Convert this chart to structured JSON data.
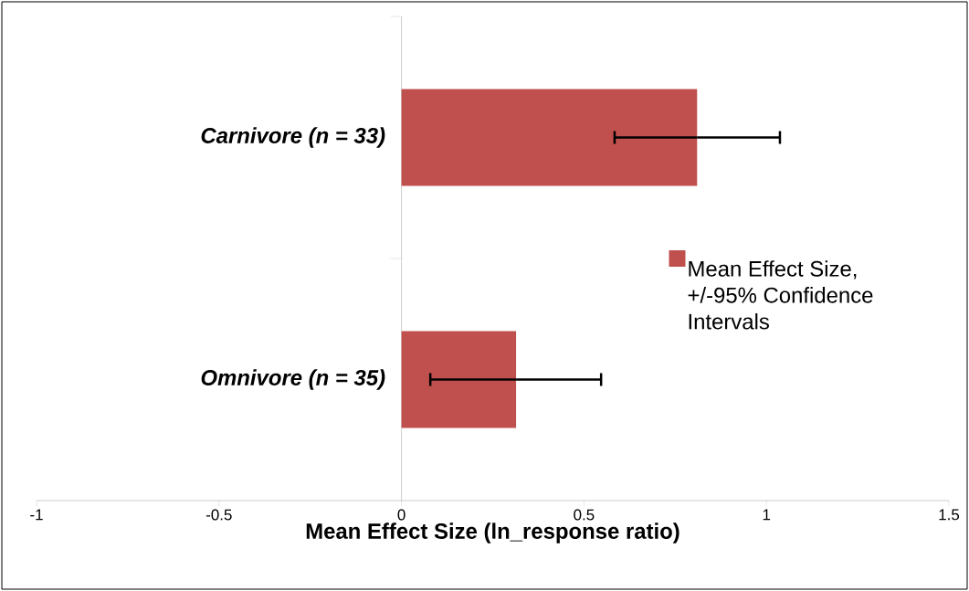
{
  "chart_data": {
    "type": "bar",
    "orientation": "horizontal",
    "categories": [
      "Carnivore (n = 33)",
      "Omnivore (n = 35)"
    ],
    "series": [
      {
        "name": "Mean Effect Size, +/-95% Confidence Intervals",
        "color": "#c0504d",
        "values": [
          0.81,
          0.314
        ],
        "errors": [
          [
            0.584,
            1.037
          ],
          [
            0.079,
            0.547
          ]
        ]
      }
    ],
    "xlabel": "Mean Effect Size (ln_response ratio)",
    "xlim": [
      -1,
      1.5
    ],
    "xticks": [
      -1,
      -0.5,
      0,
      0.5,
      1,
      1.5
    ],
    "grid": false,
    "legend": "right"
  }
}
